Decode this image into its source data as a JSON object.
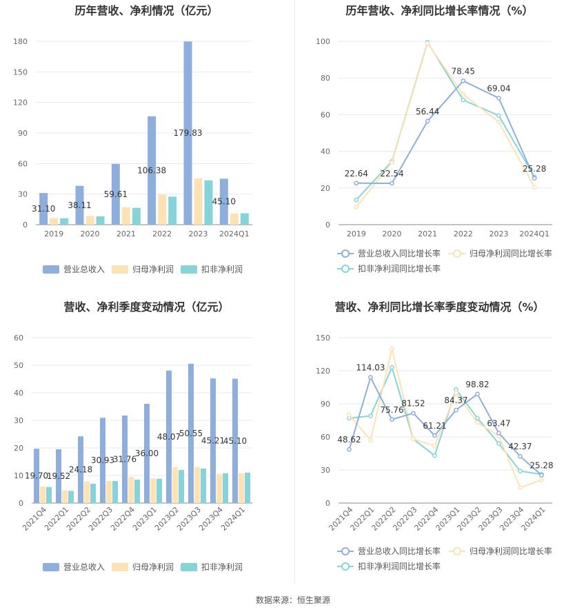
{
  "source": "数据来源：恒生聚源",
  "colors": {
    "revenue": "#8eaedb",
    "netprofit": "#fde2b4",
    "deducted": "#86d4d8"
  },
  "chart_data": [
    {
      "id": "annual_amount",
      "type": "bar",
      "title": "历年营收、净利情况（亿元）",
      "categories": [
        "2019",
        "2020",
        "2021",
        "2022",
        "2023",
        "2024Q1"
      ],
      "ylim": [
        0,
        180
      ],
      "yticks": [
        "0",
        "30",
        "60",
        "90",
        "120",
        "150",
        "180"
      ],
      "series": [
        {
          "name": "营业总收入",
          "values": [
            31.1,
            38.11,
            59.61,
            106.38,
            179.83,
            45.1
          ],
          "labels": [
            "31.10",
            "38.11",
            "59.61",
            "106.38",
            "179.83",
            "45.10"
          ]
        },
        {
          "name": "归母净利润",
          "values": [
            6.5,
            8.5,
            17.2,
            29.5,
            45.5,
            11.0
          ]
        },
        {
          "name": "扣非净利润",
          "values": [
            6.3,
            8.2,
            16.5,
            27.5,
            43.5,
            11.2
          ]
        }
      ]
    },
    {
      "id": "annual_growth",
      "type": "line",
      "title": "历年营收、净利同比增长率情况（%）",
      "categories": [
        "2019",
        "2020",
        "2021",
        "2022",
        "2023",
        "2024Q1"
      ],
      "ylim": [
        0,
        100
      ],
      "yticks": [
        "0",
        "20",
        "40",
        "60",
        "80",
        "100"
      ],
      "series": [
        {
          "name": "营业总收入同比增长率",
          "values": [
            22.64,
            22.54,
            56.44,
            78.45,
            69.04,
            25.28
          ],
          "labels": [
            "22.64",
            "22.54",
            "56.44",
            "78.45",
            "69.04",
            "25.28"
          ]
        },
        {
          "name": "归母净利润同比增长率",
          "values": [
            9.5,
            34.0,
            99.0,
            71.0,
            56.0,
            20.5
          ]
        },
        {
          "name": "扣非净利润同比增长率",
          "values": [
            13.5,
            34.5,
            99.5,
            68.0,
            59.5,
            26.0
          ]
        }
      ]
    },
    {
      "id": "quarterly_amount",
      "type": "bar",
      "title": "营收、净利季度变动情况（亿元）",
      "categories": [
        "2021Q4",
        "2022Q1",
        "2022Q2",
        "2022Q3",
        "2022Q4",
        "2023Q1",
        "2023Q2",
        "2023Q3",
        "2023Q4",
        "2024Q1"
      ],
      "ylim": [
        0,
        60
      ],
      "yticks": [
        "0",
        "10",
        "20",
        "30",
        "40",
        "50",
        "60"
      ],
      "series": [
        {
          "name": "营业总收入",
          "values": [
            19.7,
            19.52,
            24.18,
            30.93,
            31.76,
            36.0,
            48.07,
            50.55,
            45.21,
            45.1
          ],
          "labels": [
            "19.70",
            "19.52",
            "24.18",
            "30.93",
            "31.76",
            "36.00",
            "48.07",
            "50.55",
            "45.21",
            "45.10"
          ]
        },
        {
          "name": "归母净利润",
          "values": [
            6.0,
            4.6,
            7.8,
            8.0,
            9.5,
            9.0,
            13.0,
            13.0,
            10.5,
            10.8
          ]
        },
        {
          "name": "扣非净利润",
          "values": [
            5.8,
            4.4,
            7.0,
            8.0,
            8.5,
            8.8,
            12.0,
            12.5,
            10.8,
            11.0
          ]
        }
      ]
    },
    {
      "id": "quarterly_growth",
      "type": "line",
      "title": "营收、净利同比增长率季度变动情况（%）",
      "categories": [
        "2021Q4",
        "2022Q1",
        "2022Q2",
        "2022Q3",
        "2022Q4",
        "2023Q1",
        "2023Q2",
        "2023Q3",
        "2023Q4",
        "2024Q1"
      ],
      "ylim": [
        0,
        150
      ],
      "yticks": [
        "0",
        "30",
        "60",
        "90",
        "120",
        "150"
      ],
      "series": [
        {
          "name": "营业总收入同比增长率",
          "values": [
            48.62,
            114.03,
            75.76,
            81.52,
            61.21,
            84.37,
            98.82,
            63.47,
            42.37,
            25.28
          ],
          "labels": [
            "48.62",
            "114.03",
            "75.76",
            "81.52",
            "61.21",
            "84.37",
            "98.82",
            "63.47",
            "42.37",
            "25.28"
          ]
        },
        {
          "name": "归母净利润同比增长率",
          "values": [
            80,
            57,
            140,
            58,
            52,
            100,
            73,
            61,
            14,
            21
          ]
        },
        {
          "name": "扣非净利润同比增长率",
          "values": [
            77,
            79,
            123,
            58,
            43,
            103,
            77,
            54,
            29,
            26
          ]
        }
      ]
    }
  ]
}
